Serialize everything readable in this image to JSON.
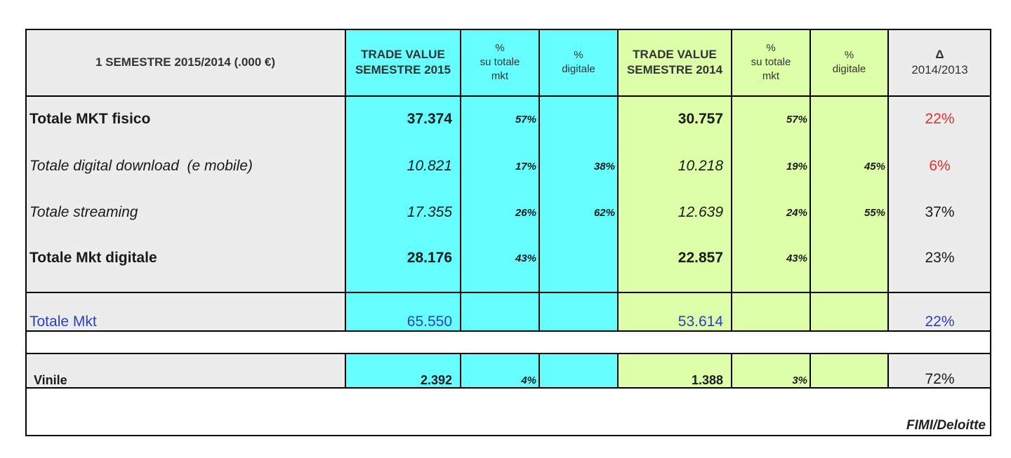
{
  "chart_data": {
    "type": "table",
    "columns": [
      "1 SEMESTRE 2015/2014 (.000 €)",
      "TRADE VALUE SEMESTRE 2015",
      "% su totale mkt",
      "% digitale",
      "TRADE VALUE SEMESTRE 2014",
      "% su totale mkt",
      "% digitale",
      "Δ 2014/2013"
    ],
    "header": {
      "title": "1 SEMESTRE 2015/2014 (.000 €)",
      "tv2015_l1": "TRADE VALUE",
      "tv2015_l2": "SEMESTRE 2015",
      "pct_mkt_l1": "%",
      "pct_mkt_l2": "su totale",
      "pct_mkt_l3": "mkt",
      "pct_dig_l1": "%",
      "pct_dig_l2": "digitale",
      "tv2014_l1": "TRADE VALUE",
      "tv2014_l2": "SEMESTRE 2014",
      "delta_l1": "Δ",
      "delta_l2": "2014/2013"
    },
    "rows": [
      {
        "label": "Totale MKT fisico",
        "tv2015": "37.374",
        "mkt2015": "57%",
        "dig2015": "",
        "tv2014": "30.757",
        "mkt2014": "57%",
        "dig2014": "",
        "delta": "22%"
      },
      {
        "label": "Totale digital download  (e mobile)",
        "tv2015": "10.821",
        "mkt2015": "17%",
        "dig2015": "38%",
        "tv2014": "10.218",
        "mkt2014": "19%",
        "dig2014": "45%",
        "delta": "6%"
      },
      {
        "label": "Totale streaming",
        "tv2015": "17.355",
        "mkt2015": "26%",
        "dig2015": "62%",
        "tv2014": "12.639",
        "mkt2014": "24%",
        "dig2014": "55%",
        "delta": "37%"
      },
      {
        "label": "Totale Mkt digitale",
        "tv2015": "28.176",
        "mkt2015": "43%",
        "dig2015": "",
        "tv2014": "22.857",
        "mkt2014": "43%",
        "dig2014": "",
        "delta": "23%"
      },
      {
        "label": "Totale Mkt",
        "tv2015": "65.550",
        "mkt2015": "",
        "dig2015": "",
        "tv2014": "53.614",
        "mkt2014": "",
        "dig2014": "",
        "delta": "22%"
      },
      {
        "label": "Vinile",
        "tv2015": "2.392",
        "mkt2015": "4%",
        "dig2015": "",
        "tv2014": "1.388",
        "mkt2014": "3%",
        "dig2014": "",
        "delta": "72%"
      }
    ],
    "source": "FIMI/Deloitte"
  }
}
